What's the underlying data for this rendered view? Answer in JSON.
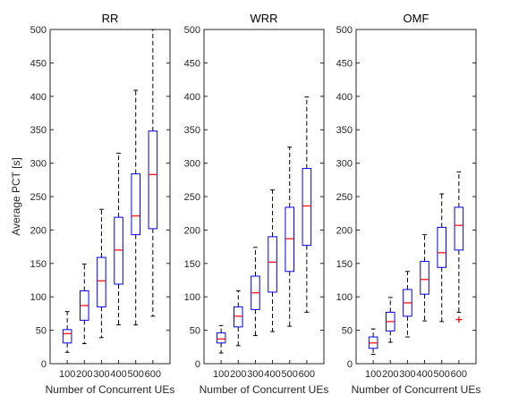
{
  "colors": {
    "box": "#0000ff",
    "median": "#ff0000",
    "whisker": "#000000",
    "outlier": "#ff0000",
    "axes": "#262626"
  },
  "chart_data": [
    {
      "type": "box",
      "title": "RR",
      "xlabel": "Number of Concurrent UEs",
      "ylabel": "Average PCT [s]",
      "ylim": [
        0,
        500
      ],
      "yticks": [
        0,
        50,
        100,
        150,
        200,
        250,
        300,
        350,
        400,
        450,
        500
      ],
      "categories": [
        "100",
        "200",
        "300",
        "400",
        "500",
        "600"
      ],
      "boxes": [
        {
          "min": 17,
          "q1": 31,
          "median": 45,
          "q3": 51,
          "max": 78
        },
        {
          "min": 30,
          "q1": 65,
          "median": 87,
          "q3": 109,
          "max": 149
        },
        {
          "min": 39,
          "q1": 85,
          "median": 124,
          "q3": 159,
          "max": 231
        },
        {
          "min": 58,
          "q1": 119,
          "median": 170,
          "q3": 219,
          "max": 315
        },
        {
          "min": 58,
          "q1": 193,
          "median": 221,
          "q3": 284,
          "max": 409
        },
        {
          "min": 71,
          "q1": 202,
          "median": 283,
          "q3": 348,
          "max": 500
        }
      ],
      "outliers": []
    },
    {
      "type": "box",
      "title": "WRR",
      "xlabel": "Number of Concurrent UEs",
      "ylabel": "",
      "ylim": [
        0,
        500
      ],
      "yticks": [
        0,
        50,
        100,
        150,
        200,
        250,
        300,
        350,
        400,
        450,
        500
      ],
      "categories": [
        "100",
        "200",
        "300",
        "400",
        "500",
        "600"
      ],
      "boxes": [
        {
          "min": 16,
          "q1": 31,
          "median": 37,
          "q3": 46,
          "max": 57
        },
        {
          "min": 27,
          "q1": 55,
          "median": 71,
          "q3": 85,
          "max": 109
        },
        {
          "min": 42,
          "q1": 81,
          "median": 106,
          "q3": 131,
          "max": 174
        },
        {
          "min": 48,
          "q1": 107,
          "median": 152,
          "q3": 190,
          "max": 260
        },
        {
          "min": 56,
          "q1": 138,
          "median": 187,
          "q3": 234,
          "max": 324
        },
        {
          "min": 77,
          "q1": 177,
          "median": 236,
          "q3": 292,
          "max": 399
        }
      ],
      "outliers": []
    },
    {
      "type": "box",
      "title": "OMF",
      "xlabel": "Number of Concurrent UEs",
      "ylabel": "",
      "ylim": [
        0,
        500
      ],
      "yticks": [
        0,
        50,
        100,
        150,
        200,
        250,
        300,
        350,
        400,
        450,
        500
      ],
      "categories": [
        "100",
        "200",
        "300",
        "400",
        "500",
        "600"
      ],
      "boxes": [
        {
          "min": 14,
          "q1": 23,
          "median": 31,
          "q3": 40,
          "max": 52
        },
        {
          "min": 32,
          "q1": 49,
          "median": 63,
          "q3": 77,
          "max": 99
        },
        {
          "min": 40,
          "q1": 71,
          "median": 91,
          "q3": 111,
          "max": 138
        },
        {
          "min": 64,
          "q1": 104,
          "median": 126,
          "q3": 153,
          "max": 193
        },
        {
          "min": 63,
          "q1": 144,
          "median": 166,
          "q3": 204,
          "max": 254
        },
        {
          "min": 77,
          "q1": 170,
          "median": 207,
          "q3": 234,
          "max": 287
        }
      ],
      "outliers": [
        {
          "category": "600",
          "value": 66
        }
      ]
    }
  ]
}
